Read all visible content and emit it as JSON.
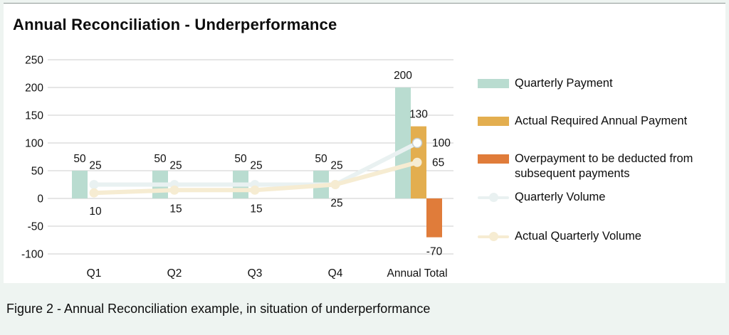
{
  "page": {
    "title": "Annual Reconciliation - Underperformance",
    "caption": "Figure 2 - Annual Reconciliation example, in situation of underperformance"
  },
  "chart_data": {
    "type": "combo-bar-line",
    "title": "Annual Reconciliation - Underperformance",
    "categories": [
      "Q1",
      "Q2",
      "Q3",
      "Q4",
      "Annual Total"
    ],
    "y_ticks": [
      250,
      200,
      150,
      100,
      50,
      0,
      -50,
      -100
    ],
    "ylim": [
      -100,
      250
    ],
    "grid": true,
    "legend_position": "right",
    "series": [
      {
        "name": "Quarterly Payment",
        "type": "bar",
        "color": "#b9dcd0",
        "values": [
          50,
          50,
          50,
          50,
          200
        ]
      },
      {
        "name": "Actual Required Annual Payment",
        "type": "bar",
        "color": "#e3ae4f",
        "values": [
          null,
          null,
          null,
          null,
          130
        ]
      },
      {
        "name": "Overpayment to be deducted from subsequent payments",
        "type": "bar",
        "color": "#e07c3a",
        "values": [
          null,
          null,
          null,
          null,
          -70
        ]
      },
      {
        "name": "Quarterly Volume",
        "type": "line",
        "color": "#e9f1f1",
        "values": [
          25,
          25,
          25,
          25,
          100
        ]
      },
      {
        "name": "Actual Quarterly Volume",
        "type": "line",
        "color": "#f6ecd2",
        "values": [
          10,
          15,
          15,
          25,
          65
        ]
      }
    ]
  }
}
